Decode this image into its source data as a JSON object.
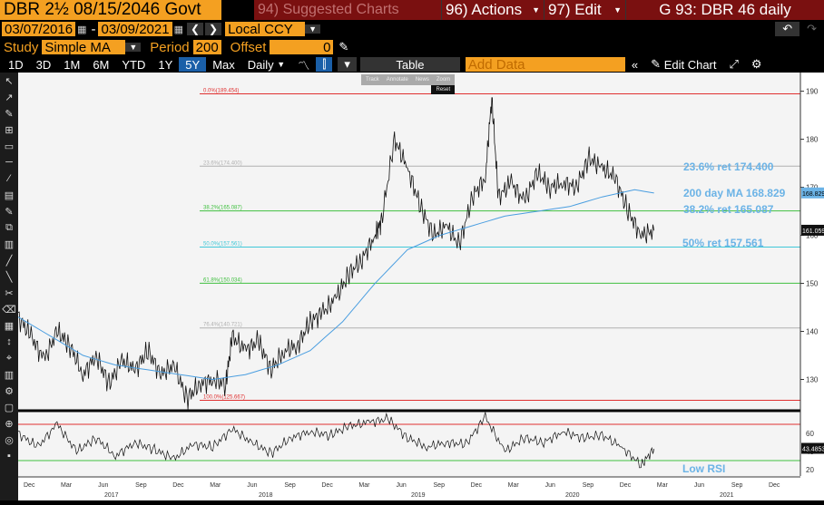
{
  "header": {
    "security": "DBR 2½ 08/15/2046 Govt",
    "suggested": "94) Suggested Charts",
    "actions": "96) Actions",
    "edit": "97) Edit",
    "graph_title": "G 93: DBR 46 daily"
  },
  "range": {
    "start": "03/07/2016",
    "dash": "-",
    "end": "03/09/2021",
    "currency": "Local CCY"
  },
  "study": {
    "label": "Study",
    "value": "Simple MA",
    "period_label": "Period",
    "period": "200",
    "offset_label": "Offset",
    "offset": "0"
  },
  "toolbar": {
    "periods": [
      "1D",
      "3D",
      "1M",
      "6M",
      "YTD",
      "1Y",
      "5Y",
      "Max"
    ],
    "active_period": "5Y",
    "frequency": "Daily",
    "table": "Table",
    "add_data": "Add Data",
    "edit_chart": "Edit Chart"
  },
  "mini_toolbar": {
    "items": [
      "Track",
      "Annotate",
      "News",
      "Zoom"
    ],
    "reset": "Reset"
  },
  "left_tools": [
    "Favorites",
    "Edit",
    "Style",
    "Modes"
  ],
  "chart_data": {
    "type": "line",
    "price_axis": {
      "ticks": [
        130,
        140,
        150,
        160,
        170,
        180,
        190
      ],
      "range": [
        125,
        192
      ]
    },
    "rsi_axis": {
      "ticks": [
        20,
        40,
        60
      ],
      "range": [
        15,
        80
      ],
      "upper": 70,
      "lower": 30
    },
    "fib_levels": [
      {
        "label": "0.0%(189.454)",
        "value": 189.454,
        "color": "#e03030"
      },
      {
        "label": "23.6%(174.400)",
        "value": 174.4,
        "color": "#b0b0b0"
      },
      {
        "label": "38.2%(165.087)",
        "value": 165.087,
        "color": "#40c040"
      },
      {
        "label": "50.0%(157.561)",
        "value": 157.561,
        "color": "#40c8d8"
      },
      {
        "label": "61.8%(150.034)",
        "value": 150.034,
        "color": "#40c040"
      },
      {
        "label": "76.4%(140.721)",
        "value": 140.721,
        "color": "#b0b0b0"
      },
      {
        "label": "100.0%(125.667)",
        "value": 125.667,
        "color": "#e03030"
      }
    ],
    "annotations": [
      {
        "text": "23.6% ret 174.400"
      },
      {
        "text": "200 day MA 168.829"
      },
      {
        "text": "38.2% ret 165.087"
      },
      {
        "text": "50% ret 157.561"
      },
      {
        "text": "Low RSI"
      }
    ],
    "last_price_label": "161.059",
    "ma_label": "168.829",
    "rsi_label": "43.4853",
    "x_months": [
      "Dec",
      "Mar",
      "Jun",
      "Sep",
      "Dec",
      "Mar",
      "Jun",
      "Sep",
      "Dec",
      "Mar",
      "Jun",
      "Sep",
      "Dec",
      "Mar",
      "Jun",
      "Sep",
      "Dec",
      "Mar",
      "Jun",
      "Sep",
      "Dec"
    ],
    "x_years": [
      "2017",
      "2018",
      "2019",
      "2020",
      "2021"
    ],
    "price_points": [
      [
        0,
        143
      ],
      [
        0.02,
        139
      ],
      [
        0.04,
        134
      ],
      [
        0.06,
        140
      ],
      [
        0.08,
        137
      ],
      [
        0.1,
        131
      ],
      [
        0.12,
        135
      ],
      [
        0.14,
        129
      ],
      [
        0.16,
        134
      ],
      [
        0.18,
        132
      ],
      [
        0.2,
        136
      ],
      [
        0.22,
        131
      ],
      [
        0.24,
        133
      ],
      [
        0.26,
        126
      ],
      [
        0.28,
        129
      ],
      [
        0.3,
        130
      ],
      [
        0.32,
        129
      ],
      [
        0.33,
        139
      ],
      [
        0.35,
        136
      ],
      [
        0.37,
        138
      ],
      [
        0.39,
        132
      ],
      [
        0.41,
        136
      ],
      [
        0.43,
        137
      ],
      [
        0.45,
        142
      ],
      [
        0.47,
        144
      ],
      [
        0.49,
        147
      ],
      [
        0.51,
        152
      ],
      [
        0.53,
        155
      ],
      [
        0.55,
        160
      ],
      [
        0.56,
        163
      ],
      [
        0.58,
        180
      ],
      [
        0.6,
        174
      ],
      [
        0.62,
        166
      ],
      [
        0.64,
        160
      ],
      [
        0.66,
        162
      ],
      [
        0.68,
        158
      ],
      [
        0.7,
        168
      ],
      [
        0.72,
        172
      ],
      [
        0.73,
        189
      ],
      [
        0.74,
        168
      ],
      [
        0.76,
        171
      ],
      [
        0.78,
        167
      ],
      [
        0.8,
        173
      ],
      [
        0.82,
        170
      ],
      [
        0.84,
        171
      ],
      [
        0.86,
        170
      ],
      [
        0.88,
        176
      ],
      [
        0.9,
        174
      ],
      [
        0.92,
        172
      ],
      [
        0.94,
        165
      ],
      [
        0.96,
        160
      ],
      [
        0.98,
        161
      ]
    ],
    "ma_points": [
      [
        0,
        143
      ],
      [
        0.05,
        139
      ],
      [
        0.1,
        135
      ],
      [
        0.15,
        133
      ],
      [
        0.2,
        132
      ],
      [
        0.25,
        131
      ],
      [
        0.3,
        130
      ],
      [
        0.35,
        131
      ],
      [
        0.4,
        133
      ],
      [
        0.45,
        136
      ],
      [
        0.5,
        142
      ],
      [
        0.55,
        150
      ],
      [
        0.6,
        157
      ],
      [
        0.65,
        160
      ],
      [
        0.7,
        162
      ],
      [
        0.75,
        164
      ],
      [
        0.8,
        165
      ],
      [
        0.85,
        166
      ],
      [
        0.9,
        168
      ],
      [
        0.95,
        169.5
      ],
      [
        0.98,
        168.8
      ]
    ],
    "rsi_points": [
      [
        0,
        60
      ],
      [
        0.03,
        45
      ],
      [
        0.06,
        70
      ],
      [
        0.09,
        40
      ],
      [
        0.12,
        55
      ],
      [
        0.15,
        35
      ],
      [
        0.18,
        50
      ],
      [
        0.21,
        42
      ],
      [
        0.24,
        32
      ],
      [
        0.27,
        48
      ],
      [
        0.3,
        45
      ],
      [
        0.33,
        65
      ],
      [
        0.36,
        50
      ],
      [
        0.39,
        38
      ],
      [
        0.42,
        55
      ],
      [
        0.45,
        62
      ],
      [
        0.48,
        58
      ],
      [
        0.51,
        68
      ],
      [
        0.54,
        72
      ],
      [
        0.57,
        76
      ],
      [
        0.6,
        55
      ],
      [
        0.63,
        45
      ],
      [
        0.66,
        50
      ],
      [
        0.69,
        48
      ],
      [
        0.72,
        78
      ],
      [
        0.75,
        40
      ],
      [
        0.78,
        55
      ],
      [
        0.81,
        50
      ],
      [
        0.84,
        62
      ],
      [
        0.87,
        55
      ],
      [
        0.9,
        58
      ],
      [
        0.93,
        45
      ],
      [
        0.96,
        25
      ],
      [
        0.98,
        43
      ]
    ]
  }
}
